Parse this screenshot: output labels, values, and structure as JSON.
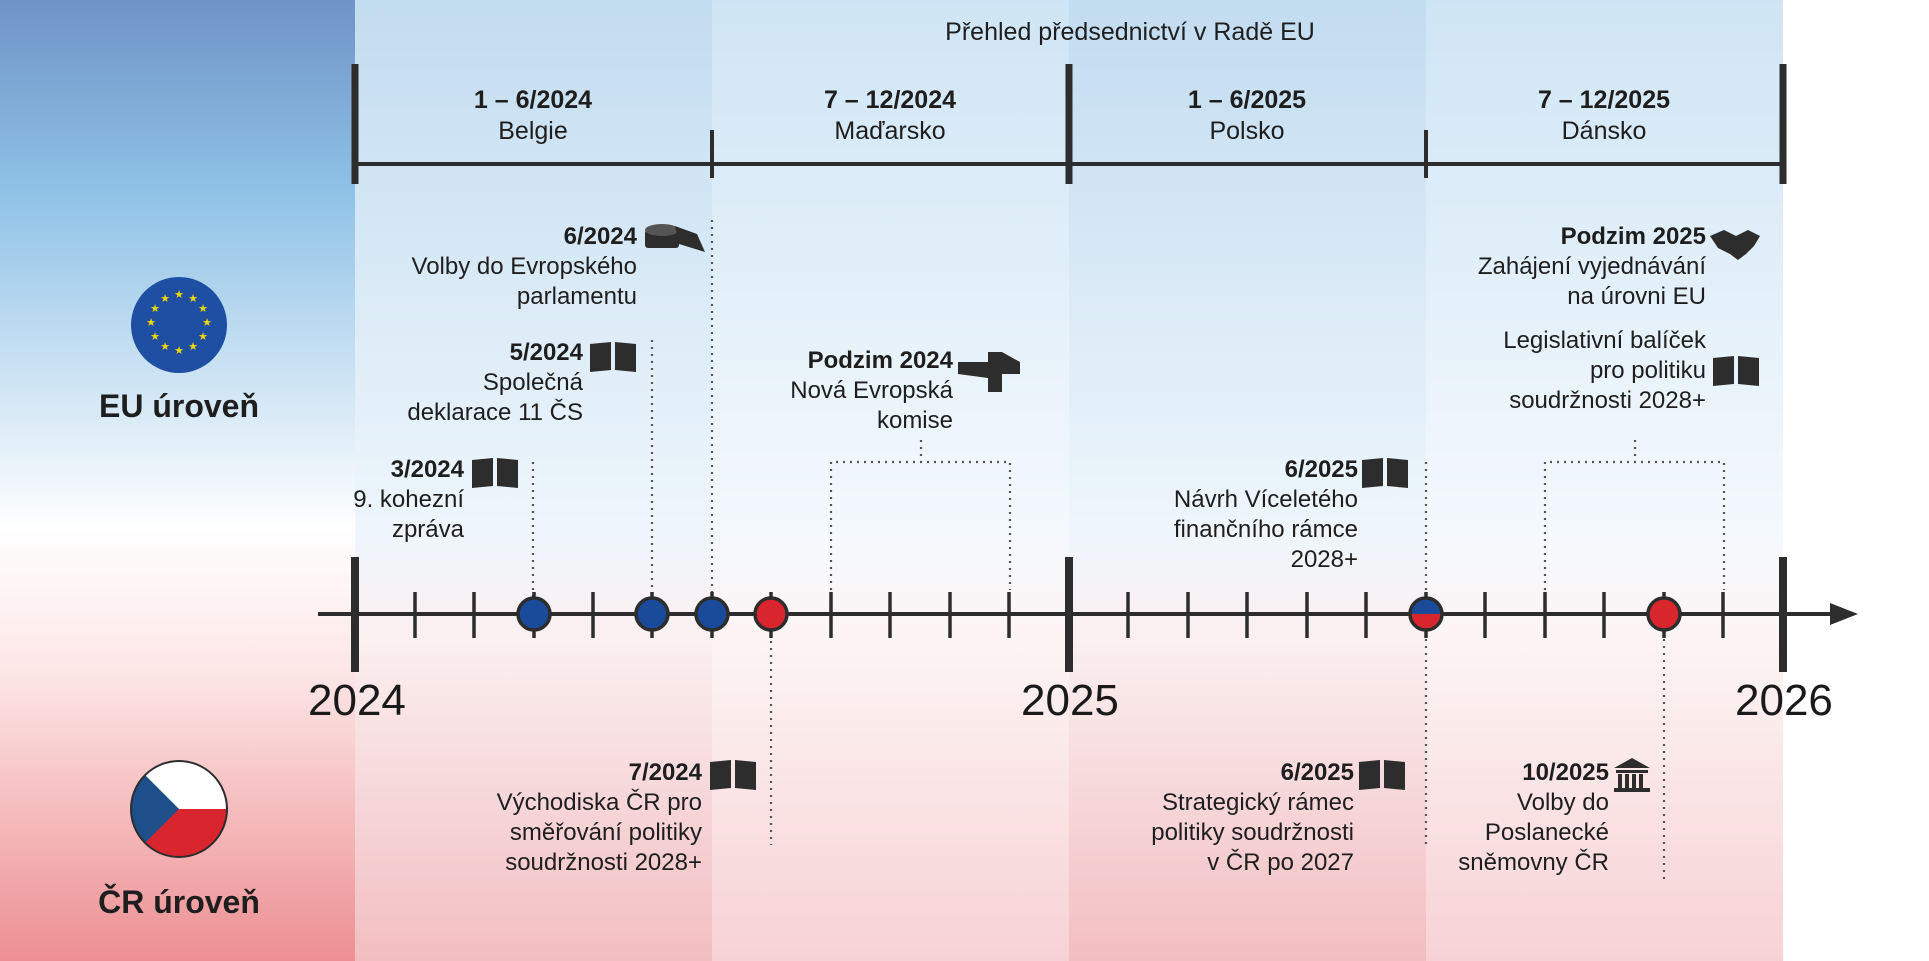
{
  "header": {
    "title": "Přehled předsednictví v Radě EU"
  },
  "presidencies": [
    {
      "dates": "1 – 6/2024",
      "country": "Belgie"
    },
    {
      "dates": "7 – 12/2024",
      "country": "Maďarsko"
    },
    {
      "dates": "1 – 6/2025",
      "country": "Polsko"
    },
    {
      "dates": "7 – 12/2025",
      "country": "Dánsko"
    }
  ],
  "years": [
    "2024",
    "2025",
    "2026"
  ],
  "levels": {
    "eu": "EU úroveň",
    "cz": "ČR úroveň"
  },
  "eu_events": [
    {
      "date": "6/2024",
      "text": "Volby do Evropského\nparlamentu",
      "icon": "ballot-box-icon"
    },
    {
      "date": "5/2024",
      "text": "Společná\ndeklarace 11 ČS",
      "icon": "book-icon"
    },
    {
      "date": "3/2024",
      "text": "9. kohezní\nzpráva",
      "icon": "book-icon"
    },
    {
      "date": "Podzim 2024",
      "text": "Nová Evropská\nkomise",
      "icon": "building-icon"
    },
    {
      "date": "6/2025",
      "text": "Návrh Víceletého\nfinančního rámce\n2028+",
      "icon": "book-icon"
    },
    {
      "date": "Podzim 2025",
      "text": "Zahájení vyjednávání\nna úrovni EU",
      "icon": "handshake-icon"
    },
    {
      "date": "",
      "text": "Legislativní balíček\npro politiku\nsoudržnosti 2028+",
      "icon": "book-icon"
    }
  ],
  "cz_events": [
    {
      "date": "7/2024",
      "text": "Východiska ČR pro\nsměřování politiky\nsoudržnosti 2028+",
      "icon": "book-icon"
    },
    {
      "date": "6/2025",
      "text": "Strategický rámec\npolitiky soudržnosti\nv ČR po 2027",
      "icon": "book-icon"
    },
    {
      "date": "10/2025",
      "text": "Volby do\nPoslanecké\nsněmovny ČR",
      "icon": "parliament-icon"
    }
  ],
  "colors": {
    "eu_blue": "#1a4a9a",
    "cz_red": "#d9252e",
    "line": "#2d2d2d",
    "eu_flag": "#1f4fa3",
    "star": "#f4d600"
  }
}
